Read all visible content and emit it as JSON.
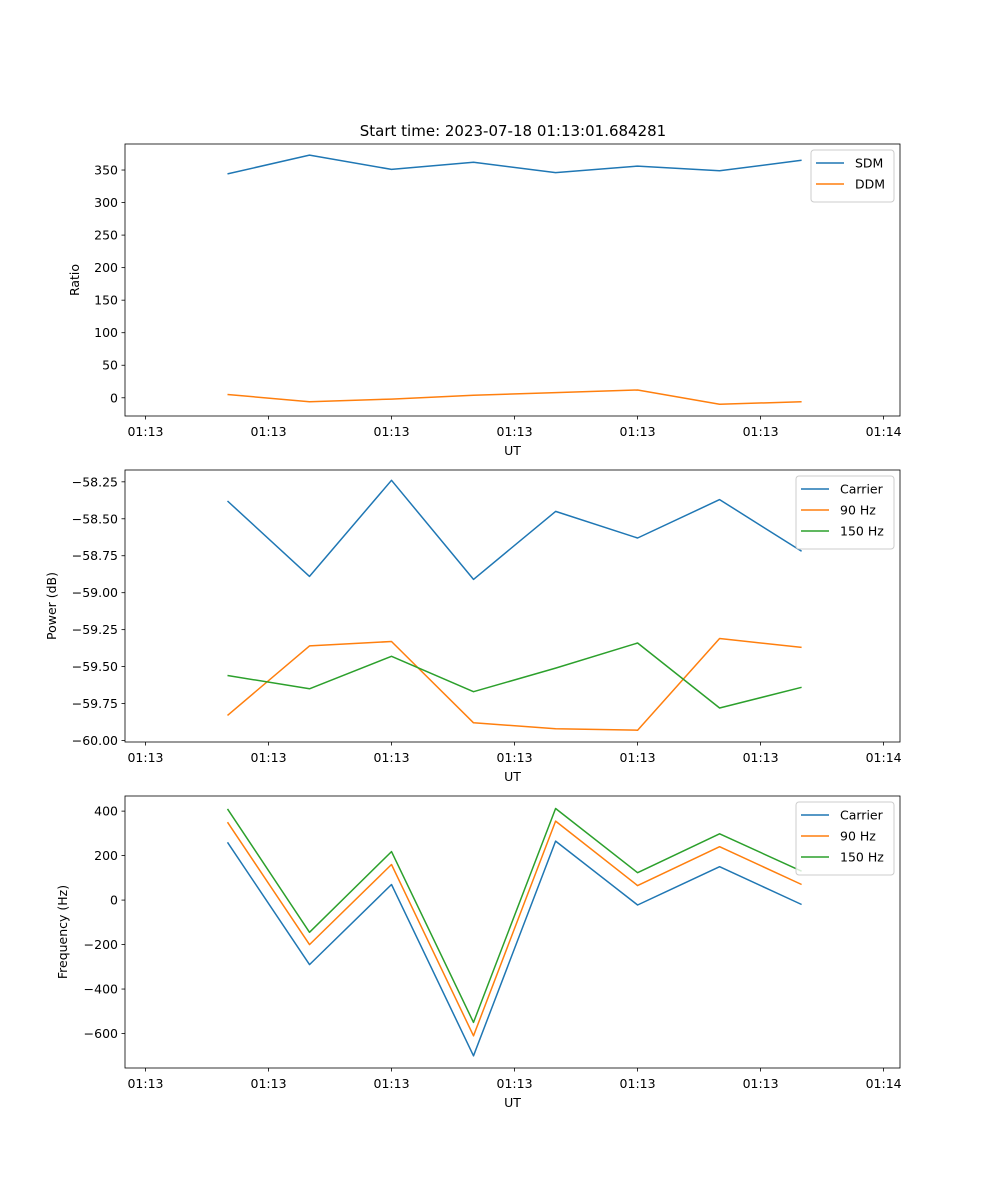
{
  "figure_title": "Start time: 2023-07-18 01:13:01.684281",
  "colors": {
    "blue": "#1f77b4",
    "orange": "#ff7f0e",
    "green": "#2ca02c"
  },
  "chart_data": [
    {
      "type": "line",
      "title": "Start time: 2023-07-18 01:13:01.684281",
      "xlabel": "UT",
      "ylabel": "Ratio",
      "x": [
        1,
        2,
        3,
        4,
        5,
        6,
        7,
        8
      ],
      "x_tick_labels": [
        "01:13",
        "01:13",
        "01:13",
        "01:13",
        "01:13",
        "01:13",
        "01:14"
      ],
      "xlim": [
        -0.25,
        9.2
      ],
      "ylim": [
        -28,
        390
      ],
      "yticks": [
        0,
        50,
        100,
        150,
        200,
        250,
        300,
        350
      ],
      "legend_position": "top-right",
      "series": [
        {
          "name": "SDM",
          "color": "#1f77b4",
          "values": [
            344,
            373,
            351,
            362,
            346,
            356,
            349,
            365
          ]
        },
        {
          "name": "DDM",
          "color": "#ff7f0e",
          "values": [
            5,
            -6,
            -2,
            4,
            8,
            12,
            -10,
            -6
          ]
        }
      ]
    },
    {
      "type": "line",
      "xlabel": "UT",
      "ylabel": "Power (dB)",
      "x": [
        1,
        2,
        3,
        4,
        5,
        6,
        7,
        8
      ],
      "x_tick_labels": [
        "01:13",
        "01:13",
        "01:13",
        "01:13",
        "01:13",
        "01:13",
        "01:14"
      ],
      "xlim": [
        -0.25,
        9.2
      ],
      "ylim": [
        -60.01,
        -58.17
      ],
      "yticks": [
        -60.0,
        -59.75,
        -59.5,
        -59.25,
        -59.0,
        -58.75,
        -58.5,
        -58.25
      ],
      "ytick_labels": [
        "−60.00",
        "−59.75",
        "−59.50",
        "−59.25",
        "−59.00",
        "−58.75",
        "−58.50",
        "−58.25"
      ],
      "legend_position": "top-right",
      "series": [
        {
          "name": "Carrier",
          "color": "#1f77b4",
          "values": [
            -58.38,
            -58.89,
            -58.24,
            -58.91,
            -58.45,
            -58.63,
            -58.37,
            -58.72
          ]
        },
        {
          "name": "90 Hz",
          "color": "#ff7f0e",
          "values": [
            -59.83,
            -59.36,
            -59.33,
            -59.88,
            -59.92,
            -59.93,
            -59.31,
            -59.37
          ]
        },
        {
          "name": "150 Hz",
          "color": "#2ca02c",
          "values": [
            -59.56,
            -59.65,
            -59.43,
            -59.67,
            -59.51,
            -59.34,
            -59.78,
            -59.64
          ]
        }
      ]
    },
    {
      "type": "line",
      "xlabel": "UT",
      "ylabel": "Frequency (Hz)",
      "x": [
        1,
        2,
        3,
        4,
        5,
        6,
        7,
        8
      ],
      "x_tick_labels": [
        "01:13",
        "01:13",
        "01:13",
        "01:13",
        "01:13",
        "01:13",
        "01:14"
      ],
      "xlim": [
        -0.25,
        9.2
      ],
      "ylim": [
        -755,
        468
      ],
      "yticks": [
        -600,
        -400,
        -200,
        0,
        200,
        400
      ],
      "ytick_labels": [
        "−600",
        "−400",
        "−200",
        "0",
        "200",
        "400"
      ],
      "legend_position": "top-right",
      "series": [
        {
          "name": "Carrier",
          "color": "#1f77b4",
          "values": [
            260,
            -290,
            70,
            -700,
            265,
            -22,
            150,
            -20
          ]
        },
        {
          "name": "90 Hz",
          "color": "#ff7f0e",
          "values": [
            350,
            -200,
            160,
            -610,
            355,
            65,
            240,
            70
          ]
        },
        {
          "name": "150 Hz",
          "color": "#2ca02c",
          "values": [
            410,
            -145,
            218,
            -550,
            412,
            123,
            298,
            130
          ]
        }
      ]
    }
  ]
}
